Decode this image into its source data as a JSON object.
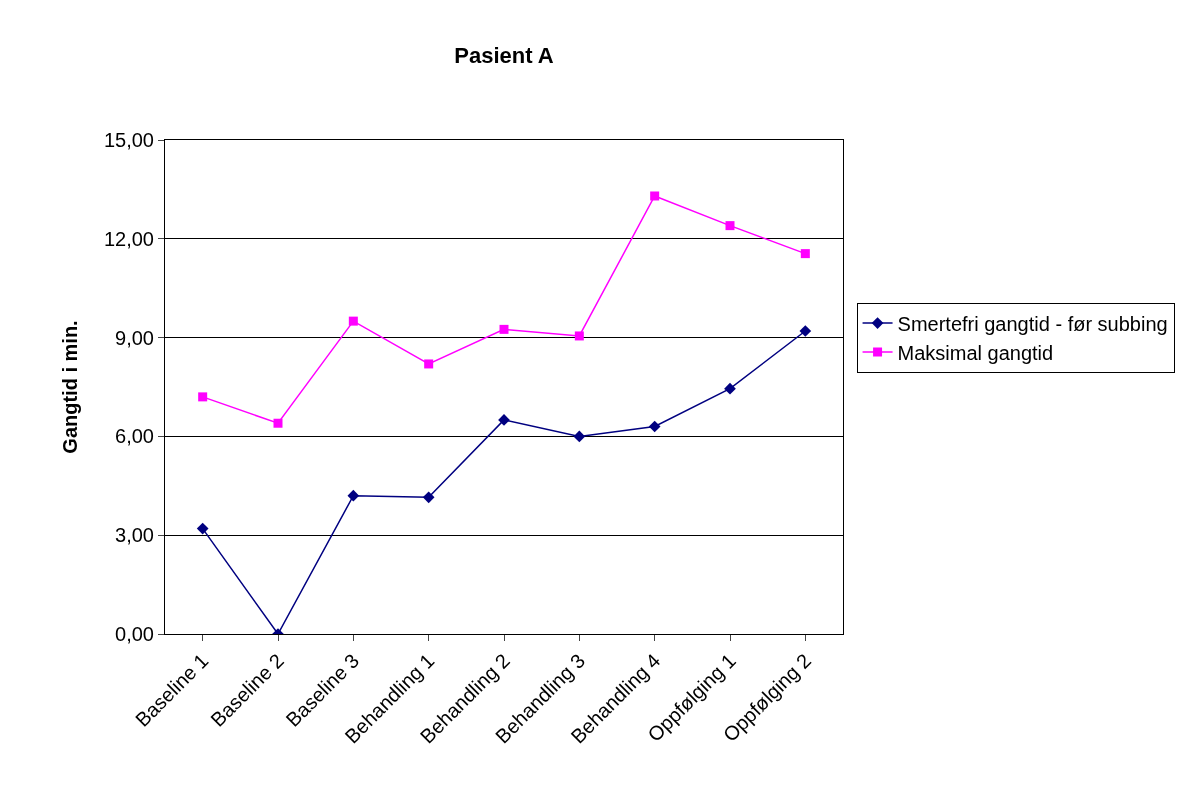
{
  "chart_data": {
    "type": "line",
    "title": "Pasient A",
    "ylabel": "Gangtid i min.",
    "categories": [
      "Baseline 1",
      "Baseline 2",
      "Baseline 3",
      "Behandling 1",
      "Behandling 2",
      "Behandling 3",
      "Behandling 4",
      "Oppfølging 1",
      "Oppfølging 2"
    ],
    "series": [
      {
        "name": "Smertefri gangtid - før subbing",
        "color": "#000080",
        "marker": "diamond",
        "values": [
          3.2,
          0,
          4.2,
          4.15,
          6.5,
          6.0,
          6.3,
          7.45,
          9.2
        ]
      },
      {
        "name": "Maksimal gangtid",
        "color": "#ff00ff",
        "marker": "square",
        "values": [
          7.2,
          6.4,
          9.5,
          8.2,
          9.25,
          9.05,
          13.3,
          12.4,
          11.55
        ]
      }
    ],
    "ylim": [
      0,
      15
    ],
    "yticks": [
      {
        "value": 0,
        "label": "0,00"
      },
      {
        "value": 3,
        "label": "3,00"
      },
      {
        "value": 6,
        "label": "6,00"
      },
      {
        "value": 9,
        "label": "9,00"
      },
      {
        "value": 12,
        "label": "12,00"
      },
      {
        "value": 15,
        "label": "15,00"
      }
    ],
    "grid": "y",
    "legend": "right",
    "line_style": "solid"
  }
}
